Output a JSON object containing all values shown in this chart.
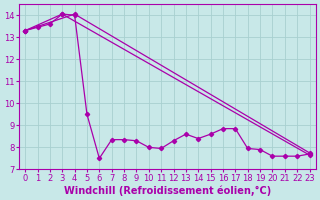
{
  "line1_x": [
    0,
    1,
    2,
    3,
    4,
    5,
    6,
    7,
    8,
    9,
    10,
    11,
    12,
    13,
    14,
    15,
    16,
    17,
    18,
    19,
    20,
    21,
    22,
    23
  ],
  "line1_y": [
    13.3,
    13.45,
    13.6,
    14.05,
    14.0,
    9.5,
    7.5,
    8.35,
    8.35,
    8.3,
    8.0,
    7.95,
    8.3,
    8.6,
    8.4,
    8.6,
    8.85,
    8.85,
    7.95,
    7.9,
    7.6,
    7.6,
    7.6,
    7.7
  ],
  "line2_x": [
    0,
    3,
    23
  ],
  "line2_y": [
    13.3,
    14.05,
    7.65
  ],
  "line3_x": [
    0,
    4,
    23
  ],
  "line3_y": [
    13.3,
    14.05,
    7.75
  ],
  "bg_color": "#c8e8e8",
  "grid_color": "#a8d0d0",
  "line_color": "#aa00aa",
  "xlabel": "Windchill (Refroidissement éolien,°C)",
  "xlim": [
    -0.5,
    23.5
  ],
  "ylim": [
    7,
    14.5
  ],
  "yticks": [
    7,
    8,
    9,
    10,
    11,
    12,
    13,
    14
  ],
  "xticks": [
    0,
    1,
    2,
    3,
    4,
    5,
    6,
    7,
    8,
    9,
    10,
    11,
    12,
    13,
    14,
    15,
    16,
    17,
    18,
    19,
    20,
    21,
    22,
    23
  ],
  "tick_fontsize": 6,
  "xlabel_fontsize": 7
}
